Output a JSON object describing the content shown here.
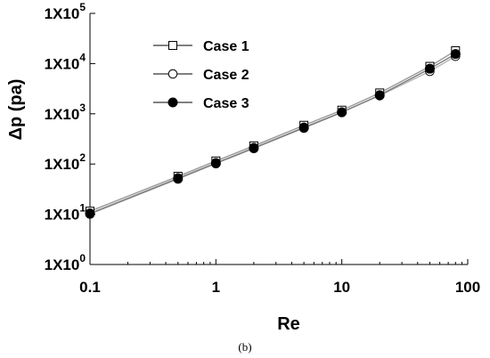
{
  "chart_data": {
    "type": "scatter",
    "xlabel": "Re",
    "ylabel": "Δp (pa)",
    "caption": "(b)",
    "x_scale": "log",
    "y_scale": "log",
    "xlim": [
      0.1,
      100
    ],
    "ylim": [
      1,
      100000
    ],
    "x_ticks": [
      {
        "value": 0.1,
        "label": "0.1"
      },
      {
        "value": 1,
        "label": "1"
      },
      {
        "value": 10,
        "label": "10"
      },
      {
        "value": 100,
        "label": "100"
      }
    ],
    "y_ticks": [
      {
        "value": 1,
        "base": "1X10",
        "exp": "0"
      },
      {
        "value": 10,
        "base": "1X10",
        "exp": "1"
      },
      {
        "value": 100,
        "base": "1X10",
        "exp": "2"
      },
      {
        "value": 1000,
        "base": "1X10",
        "exp": "3"
      },
      {
        "value": 10000,
        "base": "1X10",
        "exp": "4"
      },
      {
        "value": 100000,
        "base": "1X10",
        "exp": "5"
      }
    ],
    "grid": false,
    "legend_position": "top-left",
    "series": [
      {
        "name": "Case 1",
        "marker": "open-square",
        "color": "#000000",
        "line_color": "#9a9a9a",
        "x": [
          0.1,
          0.5,
          1,
          2,
          5,
          10,
          20,
          50,
          80
        ],
        "y": [
          11.5,
          57,
          115,
          230,
          590,
          1180,
          2600,
          8800,
          18000
        ]
      },
      {
        "name": "Case 2",
        "marker": "open-circle",
        "color": "#000000",
        "line_color": "#b5b5b5",
        "x": [
          0.1,
          0.5,
          1,
          2,
          5,
          10,
          20,
          50,
          80
        ],
        "y": [
          10.5,
          53,
          106,
          212,
          540,
          1080,
          2300,
          7000,
          14000
        ]
      },
      {
        "name": "Case 3",
        "marker": "filled-circle",
        "color": "#000000",
        "line_color": "#7a7a7a",
        "x": [
          0.1,
          0.5,
          1,
          2,
          5,
          10,
          20,
          50,
          80
        ],
        "y": [
          10.2,
          51,
          103,
          206,
          525,
          1070,
          2350,
          7900,
          15500
        ]
      }
    ]
  }
}
